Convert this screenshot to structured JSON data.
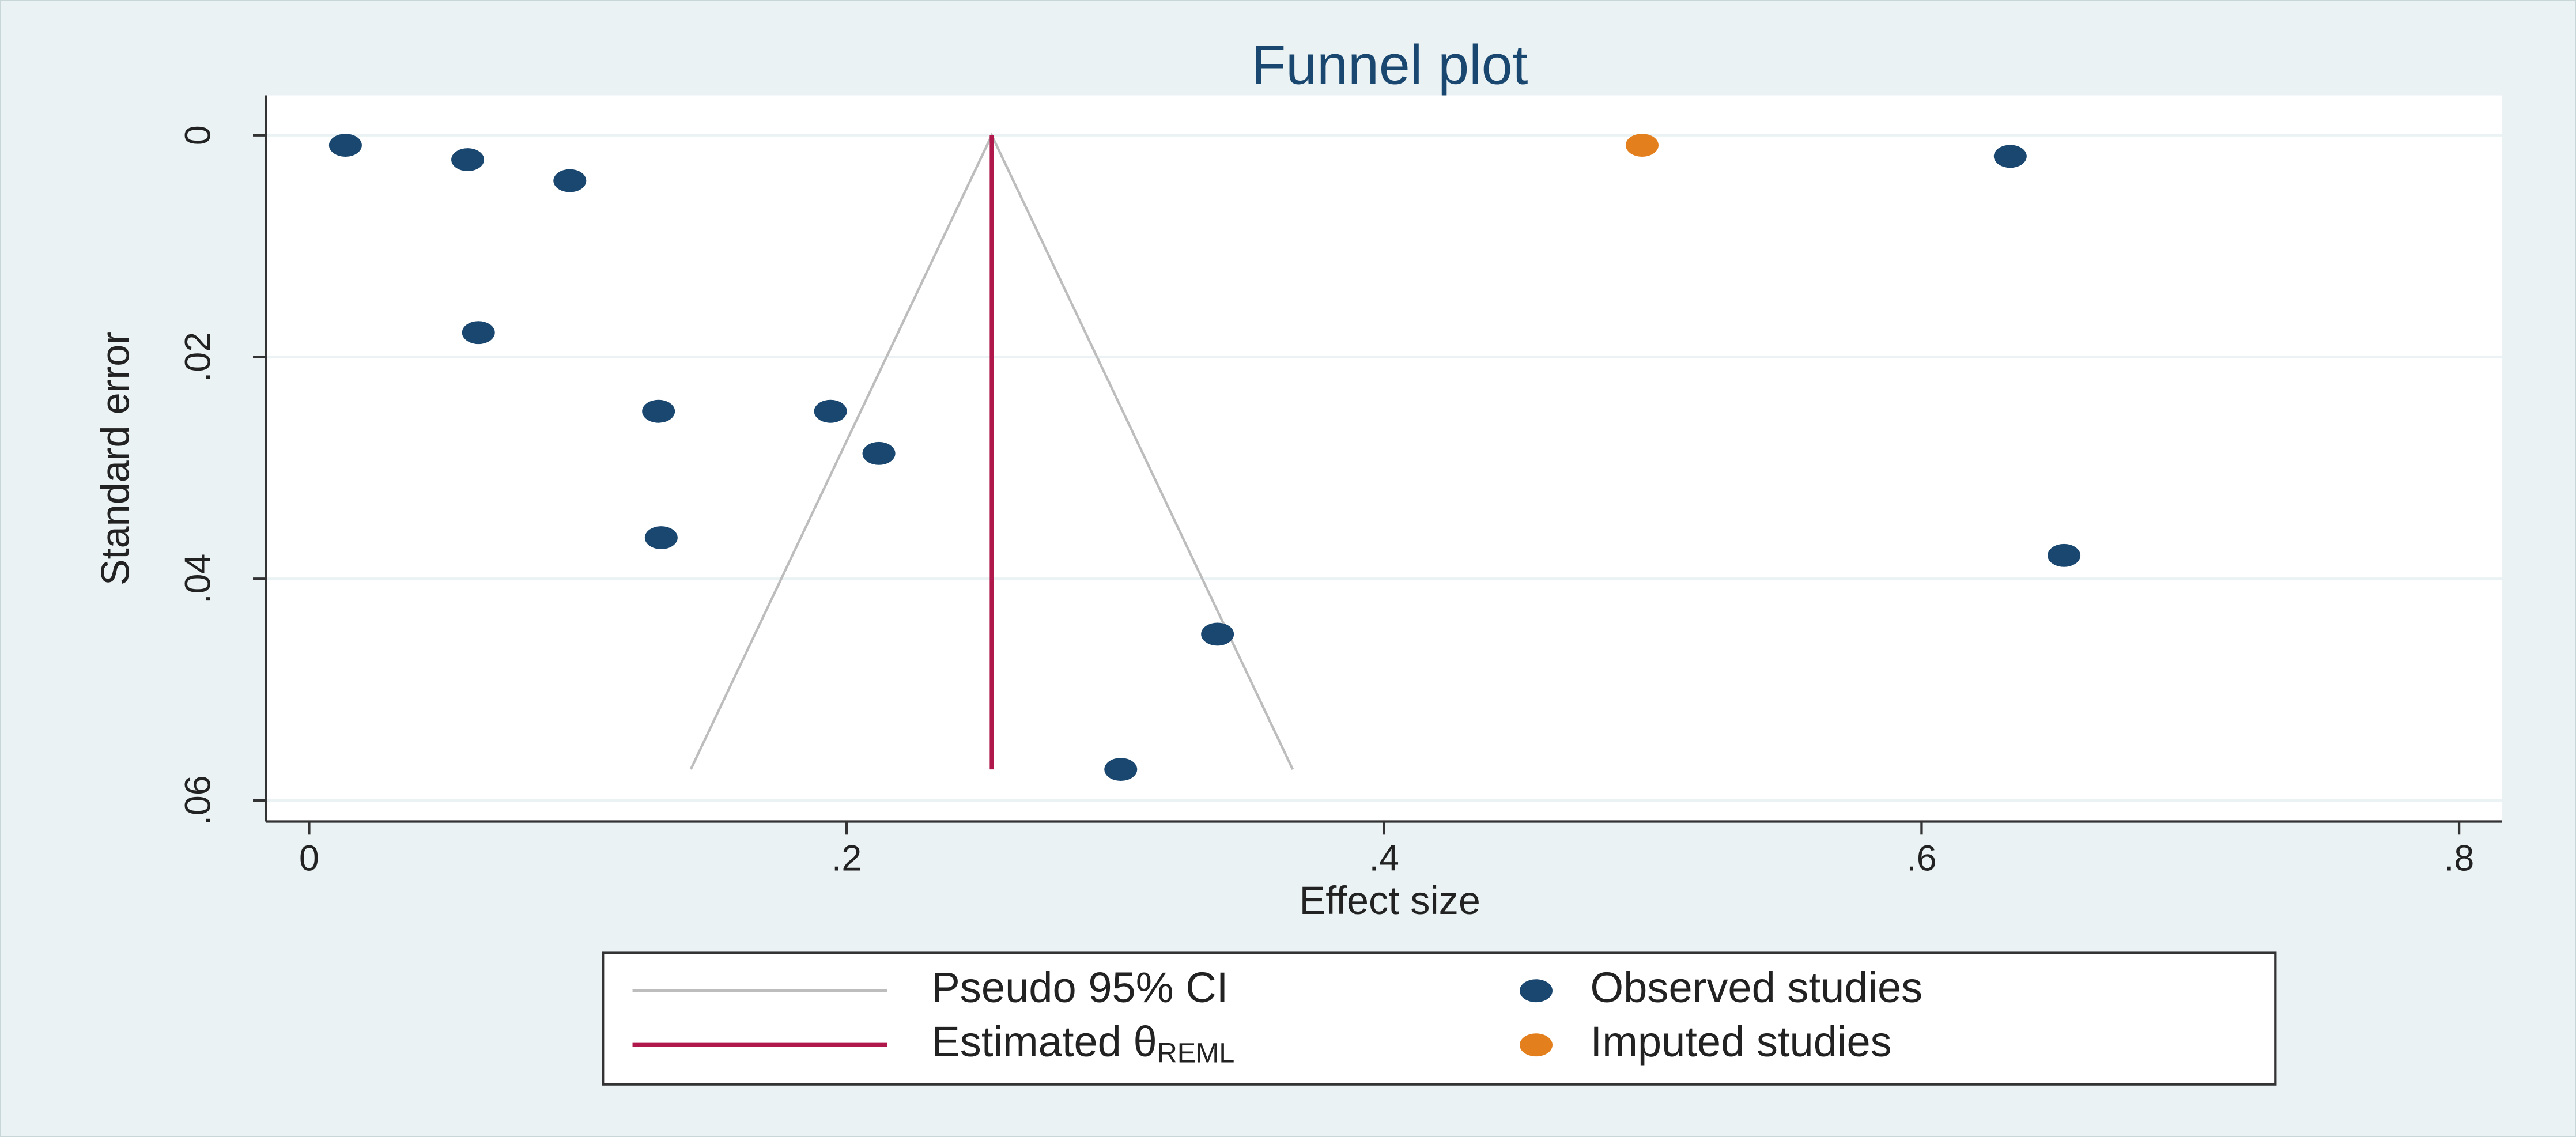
{
  "chart_data": {
    "type": "scatter",
    "title": "Funnel plot",
    "x_label": "Effect size",
    "y_label": "Standard error",
    "xlim": [
      -0.016,
      0.816
    ],
    "ylim": [
      -0.0036,
      0.0619
    ],
    "y_reversed": true,
    "xticks": [
      0,
      {
        "value": 0.2,
        "label": ".2"
      },
      {
        "value": 0.4,
        "label": ".4"
      },
      {
        "value": 0.6,
        "label": ".6"
      },
      {
        "value": 0.8,
        "label": ".8"
      }
    ],
    "yticks": [
      0,
      {
        "value": 0.02,
        "label": ".02"
      },
      {
        "value": 0.04,
        "label": ".04"
      },
      {
        "value": 0.06,
        "label": ".06"
      }
    ],
    "grid": true,
    "series": [
      {
        "name": "Pseudo 95% CI",
        "type": "line",
        "color": "#bdbdbd",
        "x": [
          0.142,
          0.254,
          0.366
        ],
        "values": [
          0.0572,
          0,
          0.0572
        ]
      },
      {
        "name": "Estimated θ",
        "name_subscript": "REML",
        "type": "line",
        "color": "#b0174a",
        "x": [
          0.254,
          0.254
        ],
        "values": [
          0,
          0.0572
        ]
      },
      {
        "name": "Observed studies",
        "type": "scatter",
        "color": "#1a476f",
        "x": [
          0.0135,
          0.059,
          0.097,
          0.633,
          0.063,
          0.13,
          0.194,
          0.212,
          0.131,
          0.653,
          0.338,
          0.302
        ],
        "values": [
          0.0009,
          0.0022,
          0.0041,
          0.0019,
          0.0178,
          0.0249,
          0.0249,
          0.0287,
          0.0363,
          0.0379,
          0.045,
          0.0572
        ]
      },
      {
        "name": "Imputed studies",
        "type": "scatter",
        "color": "#e37f1c",
        "x": [
          0.496
        ],
        "values": [
          0.0009
        ]
      }
    ]
  }
}
